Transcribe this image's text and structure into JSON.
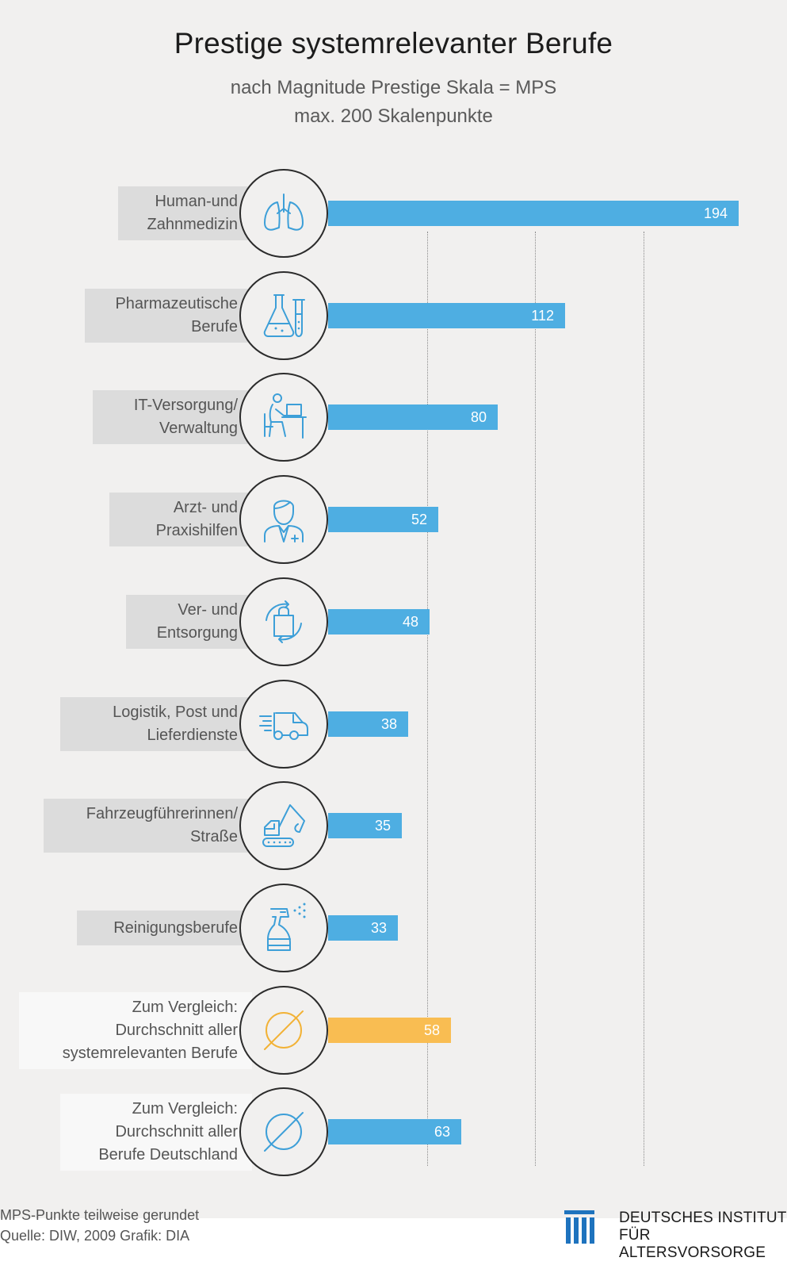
{
  "title": "Prestige systemrelevanter Berufe",
  "subtitle_line1": "nach Magnitude Prestige Skala = MPS",
  "subtitle_line2": "max. 200 Skalenpunkte",
  "colors": {
    "bar": "#4eaee2",
    "comparison_bar": "#f9bd52",
    "icon_blue": "#3d9fd8",
    "icon_yellow": "#f2b236"
  },
  "chart_data": {
    "type": "bar",
    "orientation": "horizontal",
    "title": "Prestige systemrelevanter Berufe",
    "xlim": [
      0,
      200
    ],
    "grid": true,
    "categories": [
      [
        "Human-und",
        "Zahnmedizin"
      ],
      [
        "Pharmazeutische",
        "Berufe"
      ],
      [
        "IT-Versorgung/",
        "Verwaltung"
      ],
      [
        "Arzt- und",
        "Praxishilfen"
      ],
      [
        "Ver- und",
        "Entsorgung"
      ],
      [
        "Logistik, Post und",
        "Lieferdienste"
      ],
      [
        "Fahrzeugführerinnen/",
        "Straße"
      ],
      [
        "Reinigungsberufe"
      ],
      [
        "Zum Vergleich:",
        "Durchschnitt aller",
        "systemrelevanten Berufe"
      ],
      [
        "Zum Vergleich:",
        "Durchschnitt aller",
        "Berufe Deutschland"
      ]
    ],
    "values": [
      194,
      112,
      80,
      52,
      48,
      38,
      35,
      33,
      58,
      63
    ],
    "value_labels": [
      "194",
      "112",
      "80",
      "52",
      "48",
      "38",
      "35",
      "33",
      "58",
      "63"
    ],
    "icons": [
      "lungs-icon",
      "lab-flasks-icon",
      "office-worker-icon",
      "medical-staff-icon",
      "recycling-bag-icon",
      "delivery-van-icon",
      "excavator-icon",
      "spray-bottle-icon",
      "average-symbol-icon",
      "average-symbol-icon"
    ],
    "bar_colors": [
      "blue",
      "blue",
      "blue",
      "blue",
      "blue",
      "blue",
      "blue",
      "blue",
      "yellow",
      "blue"
    ]
  },
  "footer": {
    "note_line1": "MPS-Punkte teilweise gerundet",
    "note_line2": "Quelle: DIW, 2009  Grafik: DIA",
    "logo_line1": "DEUTSCHES INSTITUT",
    "logo_line2": "FÜR ALTERSVORSORGE"
  }
}
